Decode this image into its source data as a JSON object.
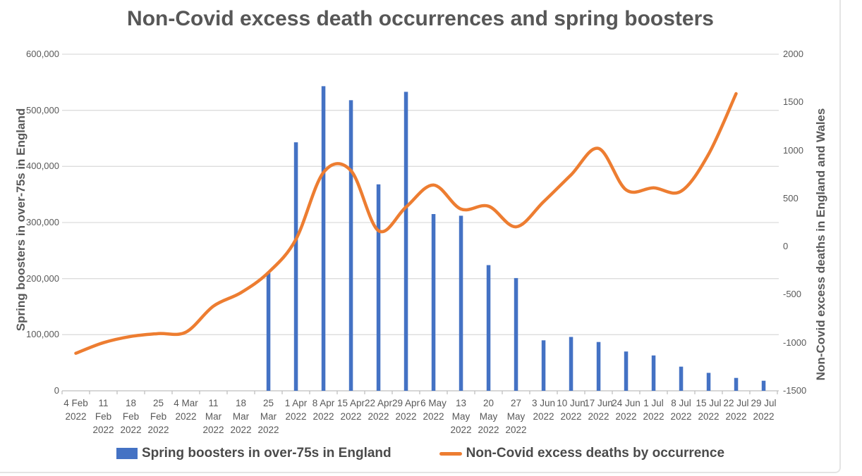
{
  "title": "Non-Covid excess death occurrences and spring boosters",
  "colors": {
    "bar": "#4472C4",
    "line": "#ED7D31",
    "gridline": "#DCDCDC",
    "axis_line": "#BFBFBF",
    "text": "#595959"
  },
  "chart_data": {
    "type": "bar+line combo, dual axis",
    "title": "Non-Covid excess death occurrences and spring boosters",
    "categories": [
      "4 Feb 2022",
      "11 Feb 2022",
      "18 Feb 2022",
      "25 Feb 2022",
      "4 Mar 2022",
      "11 Mar 2022",
      "18 Mar 2022",
      "25 Mar 2022",
      "1 Apr 2022",
      "8 Apr 2022",
      "15 Apr 2022",
      "22 Apr 2022",
      "29 Apr 2022",
      "6 May 2022",
      "13 May 2022",
      "20 May 2022",
      "27 May 2022",
      "3 Jun 2022",
      "10 Jun 2022",
      "17 Jun 2022",
      "24 Jun 2022",
      "1 Jul 2022",
      "8 Jul 2022",
      "15 Jul 2022",
      "22 Jul 2022",
      "29 Jul 2022"
    ],
    "category_label_lines": [
      [
        "4 Feb",
        "2022"
      ],
      [
        "11",
        "Feb",
        "2022"
      ],
      [
        "18",
        "Feb",
        "2022"
      ],
      [
        "25",
        "Feb",
        "2022"
      ],
      [
        "4 Mar",
        "2022"
      ],
      [
        "11",
        "Mar",
        "2022"
      ],
      [
        "18",
        "Mar",
        "2022"
      ],
      [
        "25",
        "Mar",
        "2022"
      ],
      [
        "1 Apr",
        "2022"
      ],
      [
        "8 Apr",
        "2022"
      ],
      [
        "15 Apr",
        "2022"
      ],
      [
        "22 Apr",
        "2022"
      ],
      [
        "29 Apr",
        "2022"
      ],
      [
        "6 May",
        "2022"
      ],
      [
        "13",
        "May",
        "2022"
      ],
      [
        "20",
        "May",
        "2022"
      ],
      [
        "27",
        "May",
        "2022"
      ],
      [
        "3 Jun",
        "2022"
      ],
      [
        "10 Jun",
        "2022"
      ],
      [
        "17 Jun",
        "2022"
      ],
      [
        "24 Jun",
        "2022"
      ],
      [
        "1 Jul",
        "2022"
      ],
      [
        "8 Jul",
        "2022"
      ],
      [
        "15 Jul",
        "2022"
      ],
      [
        "22 Jul",
        "2022"
      ],
      [
        "29 Jul",
        "2022"
      ]
    ],
    "series": [
      {
        "name": "Spring boosters in over-75s in England",
        "type": "bar",
        "axis": "left",
        "color": "#4472C4",
        "values": [
          null,
          null,
          null,
          null,
          null,
          null,
          null,
          210000,
          443000,
          543000,
          518000,
          368000,
          533000,
          315000,
          312000,
          224000,
          201000,
          90000,
          96000,
          87000,
          70000,
          63000,
          43000,
          32000,
          23000,
          18000
        ]
      },
      {
        "name": "Non-Covid excess deaths by occurrence",
        "type": "line",
        "axis": "right",
        "color": "#ED7D31",
        "values": [
          -1110,
          -1000,
          -935,
          -905,
          -890,
          -620,
          -480,
          -270,
          75,
          770,
          790,
          165,
          410,
          640,
          390,
          420,
          205,
          465,
          745,
          1020,
          590,
          610,
          575,
          960,
          1590,
          null
        ]
      }
    ],
    "left_axis": {
      "label": "Spring boosters in over-75s in England",
      "min": 0,
      "max": 600000,
      "tick_step": 100000,
      "tick_labels": [
        "600,000",
        "500,000",
        "400,000",
        "300,000",
        "200,000",
        "100,000",
        "0"
      ]
    },
    "right_axis": {
      "label": "Non-Covid excess deaths in England and Wales",
      "min": -1500,
      "max": 2000,
      "tick_step": 500,
      "tick_labels": [
        "2000",
        "1500",
        "1000",
        "500",
        "0",
        "-500",
        "-1000",
        "-1500"
      ]
    },
    "grid": "horizontal gridlines on, vertical off",
    "legend_position": "bottom"
  },
  "legend": {
    "items": [
      {
        "label": "Spring boosters in over-75s in England",
        "marker": "square",
        "color": "#4472C4"
      },
      {
        "label": "Non-Covid excess deaths by occurrence",
        "marker": "line",
        "color": "#ED7D31"
      }
    ]
  }
}
